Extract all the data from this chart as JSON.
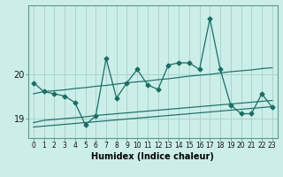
{
  "xlabel": "Humidex (Indice chaleur)",
  "background_color": "#cceee8",
  "grid_color": "#aad4ce",
  "line_color": "#1a6e65",
  "x_values": [
    0,
    1,
    2,
    3,
    4,
    5,
    6,
    7,
    8,
    9,
    10,
    11,
    12,
    13,
    14,
    15,
    16,
    17,
    18,
    19,
    20,
    21,
    22,
    23
  ],
  "main_line": [
    19.8,
    19.6,
    19.55,
    19.5,
    19.35,
    18.85,
    19.05,
    20.35,
    19.45,
    19.8,
    20.1,
    19.75,
    19.65,
    20.2,
    20.25,
    20.25,
    20.1,
    21.25,
    20.1,
    19.3,
    19.1,
    19.1,
    19.55,
    19.25
  ],
  "trend_upper": [
    19.55,
    19.6,
    19.62,
    19.64,
    19.67,
    19.69,
    19.72,
    19.74,
    19.77,
    19.8,
    19.82,
    19.84,
    19.87,
    19.89,
    19.92,
    19.95,
    19.97,
    19.99,
    20.02,
    20.05,
    20.07,
    20.09,
    20.12,
    20.14
  ],
  "trend_mid": [
    18.9,
    18.95,
    18.97,
    18.99,
    19.01,
    19.03,
    19.06,
    19.08,
    19.1,
    19.12,
    19.14,
    19.16,
    19.18,
    19.2,
    19.22,
    19.24,
    19.26,
    19.28,
    19.3,
    19.32,
    19.34,
    19.36,
    19.38,
    19.4
  ],
  "trend_lower": [
    18.8,
    18.82,
    18.84,
    18.86,
    18.88,
    18.9,
    18.92,
    18.94,
    18.96,
    18.98,
    19.0,
    19.02,
    19.04,
    19.06,
    19.08,
    19.1,
    19.12,
    19.14,
    19.16,
    19.18,
    19.2,
    19.22,
    19.24,
    19.26
  ],
  "ylim": [
    18.55,
    21.55
  ],
  "yticks": [
    19,
    20
  ],
  "xlim": [
    -0.5,
    23.5
  ]
}
